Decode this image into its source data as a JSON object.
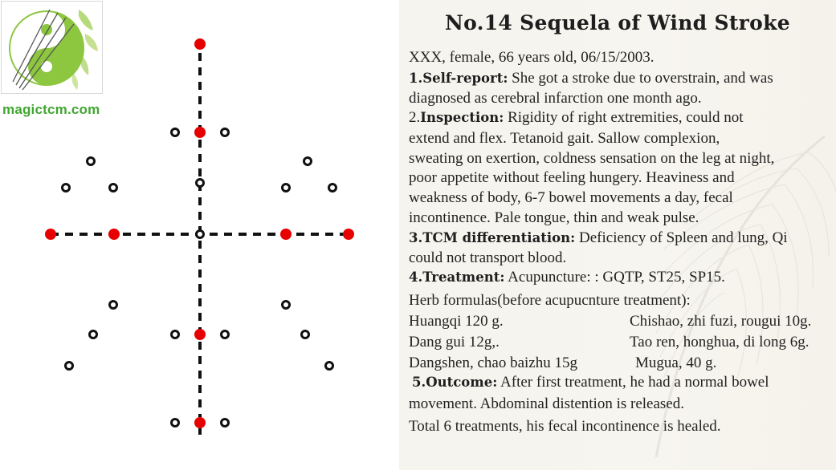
{
  "logo": {
    "text": "magictcm.com",
    "colors": {
      "green": "#8dc63f",
      "dark_green": "#41a531"
    }
  },
  "diagram": {
    "dot_colors": {
      "marked": "#e60000",
      "open": "#111111"
    }
  },
  "case": {
    "title": "No.14 Sequela of Wind Stroke",
    "patient": "XXX, female, 66 years old, 06/15/2003.",
    "self_report": {
      "heading": "1.Self-report:",
      "lines": [
        " She got a stroke due to overstrain, and  was",
        "diagnosed as cerebral infarction one month ago."
      ]
    },
    "inspection": {
      "prefix": "2.",
      "heading": "Inspection:",
      "lines": [
        " Rigidity of right extremities, could not",
        "extend and flex. Tetanoid gait. Sallow complexion,",
        "sweating on exertion, coldness sensation on the leg at night,",
        "poor appetite without feeling hungery. Heaviness and",
        "weakness of body, 6-7 bowel movements a day, fecal",
        "incontinence. Pale tongue, thin and weak pulse."
      ]
    },
    "differentiation": {
      "heading": "3.TCM differentiation:",
      "lines": [
        " Deficiency of Spleen and lung, Qi",
        "could not transport blood."
      ]
    },
    "treatment": {
      "heading": "4.Treatment:",
      "text": " Acupuncture: : GQTP, ST25, SP15.",
      "herb_intro": "Herb formulas(before acupucnture treatment):",
      "herbs_left": [
        "Huangqi 120 g.",
        "Dang gui 12g,.",
        "Dangshen, chao baizhu 15g"
      ],
      "herbs_right": [
        "Chishao, zhi fuzi, rougui 10g.",
        "Tao ren, honghua, di long 6g.",
        "Mugua, 40 g."
      ]
    },
    "outcome": {
      "heading": "5.Outcome:",
      "lines": [
        " After first treatment, he had a normal bowel",
        "movement. Abdominal distention is released.",
        "Total 6 treatments, his fecal incontinence is healed."
      ]
    }
  }
}
